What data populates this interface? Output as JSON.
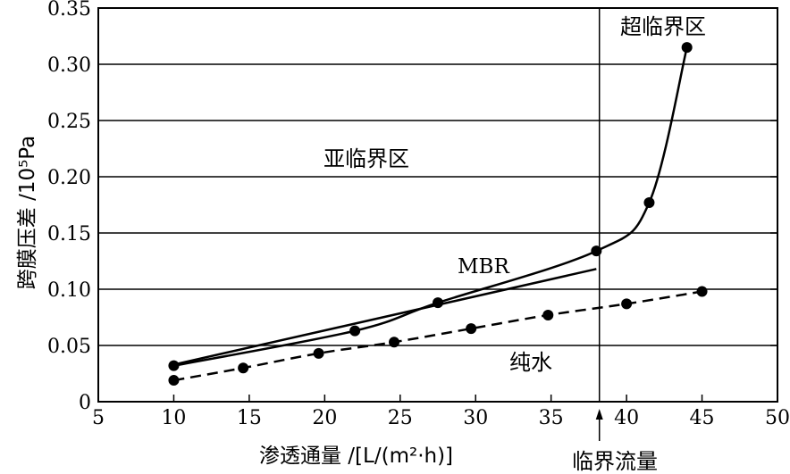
{
  "chart_data": {
    "type": "line",
    "xlabel": "渗透通量 /[L/(m²·h)]",
    "ylabel": "跨膜压差 /10⁵Pa",
    "xlim": [
      5,
      50
    ],
    "ylim": [
      0,
      0.35
    ],
    "x_ticks": [
      "5",
      "10",
      "15",
      "20",
      "25",
      "30",
      "35",
      "40",
      "45",
      "50"
    ],
    "y_ticks": [
      "0",
      "0.05",
      "0.10",
      "0.15",
      "0.20",
      "0.25",
      "0.30",
      "0.35"
    ],
    "grid": "horizontal",
    "critical_flux_x": 38.2,
    "annotations": {
      "subcritical": "亚临界区",
      "supercritical": "超临界区",
      "critical_flux": "临界流量"
    },
    "series": [
      {
        "name": "MBR",
        "style": "solid",
        "markers": true,
        "points": [
          [
            10,
            0.032
          ],
          [
            22,
            0.063
          ],
          [
            27.5,
            0.088
          ],
          [
            38,
            0.134
          ],
          [
            41.5,
            0.177
          ],
          [
            44,
            0.315
          ]
        ]
      },
      {
        "name": "MBR",
        "style": "solid",
        "markers": false,
        "points": [
          [
            10,
            0.033
          ],
          [
            38,
            0.118
          ]
        ]
      },
      {
        "name": "纯水",
        "style": "dashed",
        "markers": true,
        "points": [
          [
            10,
            0.019
          ],
          [
            14.6,
            0.03
          ],
          [
            19.6,
            0.043
          ],
          [
            24.6,
            0.053
          ],
          [
            29.7,
            0.065
          ],
          [
            34.8,
            0.077
          ],
          [
            40,
            0.087
          ],
          [
            45,
            0.098
          ]
        ]
      }
    ]
  }
}
